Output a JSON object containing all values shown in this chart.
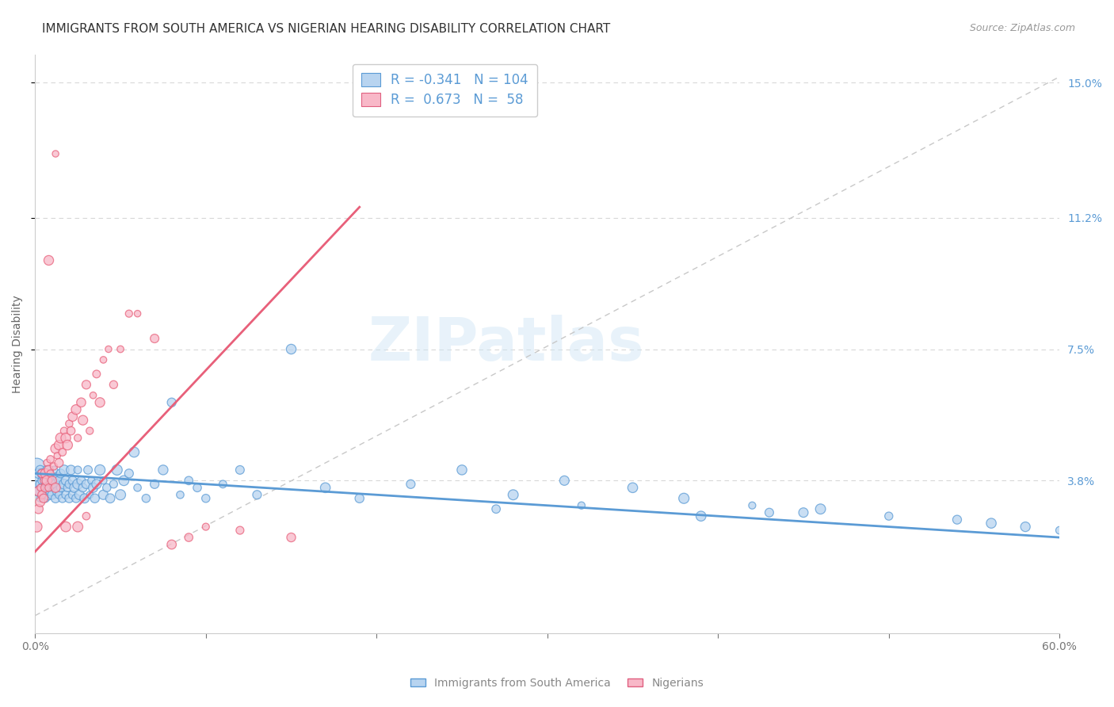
{
  "title": "IMMIGRANTS FROM SOUTH AMERICA VS NIGERIAN HEARING DISABILITY CORRELATION CHART",
  "source": "Source: ZipAtlas.com",
  "ylabel": "Hearing Disability",
  "legend_labels": [
    "Immigrants from South America",
    "Nigerians"
  ],
  "legend_colors_face": [
    "#b8d4f0",
    "#f8b8c8"
  ],
  "legend_colors_edge": [
    "#5b9bd5",
    "#e06080"
  ],
  "r_blue": -0.341,
  "n_blue": 104,
  "r_pink": 0.673,
  "n_pink": 58,
  "blue_color": "#5b9bd5",
  "pink_color": "#e8607a",
  "blue_face": "#b8d4f0",
  "pink_face": "#f8b8c8",
  "xmin": 0.0,
  "xmax": 0.6,
  "ymin": -0.005,
  "ymax": 0.158,
  "yticks": [
    0.038,
    0.075,
    0.112,
    0.15
  ],
  "ytick_labels": [
    "3.8%",
    "7.5%",
    "11.2%",
    "15.0%"
  ],
  "watermark": "ZIPatlas",
  "title_fontsize": 11,
  "ylabel_fontsize": 10,
  "tick_fontsize": 10,
  "blue_line_y0": 0.04,
  "blue_line_y1": 0.022,
  "pink_line_x0": 0.0,
  "pink_line_x1": 0.19,
  "pink_line_y0": 0.018,
  "pink_line_y1": 0.115,
  "blue_scatter_x": [
    0.001,
    0.001,
    0.001,
    0.002,
    0.002,
    0.003,
    0.003,
    0.003,
    0.004,
    0.004,
    0.004,
    0.005,
    0.005,
    0.006,
    0.006,
    0.007,
    0.007,
    0.007,
    0.008,
    0.008,
    0.009,
    0.009,
    0.01,
    0.01,
    0.011,
    0.011,
    0.012,
    0.012,
    0.013,
    0.013,
    0.014,
    0.014,
    0.015,
    0.015,
    0.016,
    0.017,
    0.017,
    0.018,
    0.018,
    0.019,
    0.02,
    0.02,
    0.021,
    0.022,
    0.022,
    0.023,
    0.024,
    0.025,
    0.025,
    0.026,
    0.027,
    0.028,
    0.029,
    0.03,
    0.031,
    0.032,
    0.033,
    0.034,
    0.035,
    0.036,
    0.038,
    0.04,
    0.04,
    0.042,
    0.044,
    0.046,
    0.048,
    0.05,
    0.052,
    0.055,
    0.058,
    0.06,
    0.065,
    0.07,
    0.075,
    0.08,
    0.085,
    0.09,
    0.095,
    0.1,
    0.11,
    0.12,
    0.13,
    0.15,
    0.17,
    0.19,
    0.22,
    0.25,
    0.28,
    0.31,
    0.35,
    0.38,
    0.42,
    0.46,
    0.5,
    0.54,
    0.56,
    0.58,
    0.6,
    0.45,
    0.32,
    0.27,
    0.39,
    0.43
  ],
  "blue_scatter_y": [
    0.038,
    0.042,
    0.036,
    0.04,
    0.035,
    0.041,
    0.037,
    0.033,
    0.038,
    0.036,
    0.04,
    0.034,
    0.039,
    0.037,
    0.033,
    0.038,
    0.036,
    0.041,
    0.034,
    0.037,
    0.035,
    0.039,
    0.036,
    0.034,
    0.038,
    0.041,
    0.033,
    0.037,
    0.035,
    0.039,
    0.034,
    0.038,
    0.036,
    0.04,
    0.033,
    0.037,
    0.041,
    0.034,
    0.038,
    0.036,
    0.033,
    0.037,
    0.041,
    0.034,
    0.038,
    0.036,
    0.033,
    0.037,
    0.041,
    0.034,
    0.038,
    0.036,
    0.033,
    0.037,
    0.041,
    0.034,
    0.038,
    0.036,
    0.033,
    0.037,
    0.041,
    0.034,
    0.038,
    0.036,
    0.033,
    0.037,
    0.041,
    0.034,
    0.038,
    0.04,
    0.046,
    0.036,
    0.033,
    0.037,
    0.041,
    0.06,
    0.034,
    0.038,
    0.036,
    0.033,
    0.037,
    0.041,
    0.034,
    0.075,
    0.036,
    0.033,
    0.037,
    0.041,
    0.034,
    0.038,
    0.036,
    0.033,
    0.031,
    0.03,
    0.028,
    0.027,
    0.026,
    0.025,
    0.024,
    0.029,
    0.031,
    0.03,
    0.028,
    0.029
  ],
  "pink_scatter_x": [
    0.001,
    0.002,
    0.002,
    0.003,
    0.003,
    0.004,
    0.004,
    0.005,
    0.005,
    0.006,
    0.006,
    0.007,
    0.007,
    0.008,
    0.008,
    0.009,
    0.009,
    0.01,
    0.011,
    0.012,
    0.012,
    0.013,
    0.014,
    0.014,
    0.015,
    0.016,
    0.017,
    0.018,
    0.019,
    0.02,
    0.021,
    0.022,
    0.024,
    0.025,
    0.027,
    0.028,
    0.03,
    0.032,
    0.034,
    0.036,
    0.038,
    0.04,
    0.043,
    0.046,
    0.05,
    0.055,
    0.06,
    0.07,
    0.08,
    0.09,
    0.1,
    0.12,
    0.15,
    0.018,
    0.025,
    0.03,
    0.012,
    0.008
  ],
  "pink_scatter_y": [
    0.025,
    0.03,
    0.035,
    0.032,
    0.036,
    0.034,
    0.04,
    0.038,
    0.033,
    0.036,
    0.04,
    0.038,
    0.043,
    0.036,
    0.041,
    0.04,
    0.044,
    0.038,
    0.042,
    0.036,
    0.047,
    0.045,
    0.043,
    0.048,
    0.05,
    0.046,
    0.052,
    0.05,
    0.048,
    0.054,
    0.052,
    0.056,
    0.058,
    0.05,
    0.06,
    0.055,
    0.065,
    0.052,
    0.062,
    0.068,
    0.06,
    0.072,
    0.075,
    0.065,
    0.075,
    0.085,
    0.085,
    0.078,
    0.02,
    0.022,
    0.025,
    0.024,
    0.022,
    0.025,
    0.025,
    0.028,
    0.13,
    0.1
  ]
}
